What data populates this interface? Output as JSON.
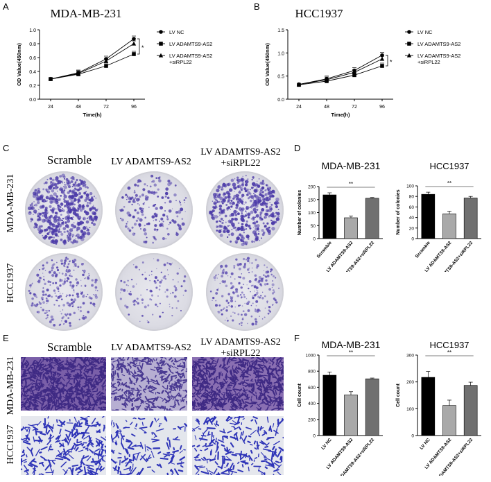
{
  "panels": {
    "A": {
      "letter": "A",
      "title": "MDA-MB-231"
    },
    "B": {
      "letter": "B",
      "title": "HCC1937"
    },
    "C": {
      "letter": "C",
      "columns": [
        "Scramble",
        "LV ADAMTS9-AS2",
        "LV ADAMTS9-AS2",
        "+siRPL22"
      ],
      "rows": [
        "MDA-MB-231",
        "HCC1937"
      ]
    },
    "D": {
      "letter": "D"
    },
    "E": {
      "letter": "E",
      "columns": [
        "Scramble",
        "LV ADAMTS9-AS2",
        "LV ADAMTS9-AS2",
        "+siRPL22"
      ],
      "rows": [
        "MDA-MB-231",
        "HCC1937"
      ]
    },
    "F": {
      "letter": "F"
    }
  },
  "legend_ab": [
    "LV NC",
    "LV ADAMTS9-AS2",
    "LV ADAMTS9-AS2",
    "+siRPL22"
  ],
  "chart_data": [
    {
      "id": "A",
      "type": "line",
      "title": "MDA-MB-231",
      "xlabel": "Time(h)",
      "ylabel": "OD Value(450nm)",
      "x": [
        24,
        48,
        72,
        96
      ],
      "ylim": [
        0,
        1.0
      ],
      "yticks": [
        "0.0",
        "0.2",
        "0.4",
        "0.6",
        "0.8",
        "1.0"
      ],
      "series": [
        {
          "name": "LV NC",
          "marker": "circle",
          "values": [
            0.29,
            0.38,
            0.58,
            0.87
          ]
        },
        {
          "name": "LV ADAMTS9-AS2",
          "marker": "square",
          "values": [
            0.29,
            0.36,
            0.48,
            0.65
          ]
        },
        {
          "name": "LV ADAMTS9-AS2 +siRPL22",
          "marker": "triangle",
          "values": [
            0.29,
            0.37,
            0.55,
            0.8
          ]
        }
      ],
      "annotation": "*"
    },
    {
      "id": "B",
      "type": "line",
      "title": "HCC1937",
      "xlabel": "Time(h)",
      "ylabel": "OD Value(450nm)",
      "x": [
        24,
        48,
        72,
        96
      ],
      "ylim": [
        0,
        1.5
      ],
      "yticks": [
        "0.0",
        "0.5",
        "1.0",
        "1.5"
      ],
      "series": [
        {
          "name": "LV NC",
          "marker": "circle",
          "values": [
            0.32,
            0.44,
            0.62,
            0.95
          ]
        },
        {
          "name": "LV ADAMTS9-AS2",
          "marker": "square",
          "values": [
            0.31,
            0.39,
            0.52,
            0.72
          ]
        },
        {
          "name": "LV ADAMTS9-AS2 +siRPL22",
          "marker": "triangle",
          "values": [
            0.32,
            0.42,
            0.58,
            0.87
          ]
        }
      ],
      "annotation": "*"
    },
    {
      "id": "D1",
      "type": "bar",
      "title": "MDA-MB-231",
      "ylabel": "Number of colonies",
      "categories": [
        "Scramble",
        "LV ADAMTS9-AS2",
        "LV ADAMTS9-AS2+siRPL22"
      ],
      "values": [
        168,
        80,
        155
      ],
      "errors": [
        8,
        7,
        3
      ],
      "ylim": [
        0,
        200
      ],
      "yticks": [
        "0",
        "50",
        "100",
        "150",
        "200"
      ],
      "colors": [
        "#000000",
        "#a9a9a9",
        "#707070"
      ],
      "annotation": "**"
    },
    {
      "id": "D2",
      "type": "bar",
      "title": "HCC1937",
      "ylabel": "Number of colonies",
      "categories": [
        "Scramble",
        "LV ADAMTS9-AS2",
        "LV ADAMTS9-AS2+siRPL22"
      ],
      "values": [
        84,
        47,
        77
      ],
      "errors": [
        4,
        5,
        3
      ],
      "ylim": [
        0,
        100
      ],
      "yticks": [
        "0",
        "20",
        "40",
        "60",
        "80",
        "100"
      ],
      "colors": [
        "#000000",
        "#a9a9a9",
        "#707070"
      ],
      "annotation": "**"
    },
    {
      "id": "F1",
      "type": "bar",
      "title": "MDA-MB-231",
      "ylabel": "Cell count",
      "categories": [
        "LV NC",
        "LV ADAMTS9-AS2",
        "LV ADAMTS9-AS2+siRPL22"
      ],
      "values": [
        750,
        505,
        705
      ],
      "errors": [
        40,
        40,
        10
      ],
      "ylim": [
        0,
        1000
      ],
      "yticks": [
        "0",
        "200",
        "400",
        "600",
        "800",
        "1000"
      ],
      "colors": [
        "#000000",
        "#a9a9a9",
        "#707070"
      ],
      "annotation": "**"
    },
    {
      "id": "F2",
      "type": "bar",
      "title": "HCC1937",
      "ylabel": "Cell count",
      "categories": [
        "LV NC",
        "LV ADAMTS9-AS2",
        "LV ADAMTS9-AS2+siRPL22"
      ],
      "values": [
        217,
        112,
        187
      ],
      "errors": [
        22,
        20,
        12
      ],
      "ylim": [
        0,
        300
      ],
      "yticks": [
        "0",
        "100",
        "200",
        "300"
      ],
      "colors": [
        "#000000",
        "#a9a9a9",
        "#707070"
      ],
      "annotation": "**"
    }
  ]
}
